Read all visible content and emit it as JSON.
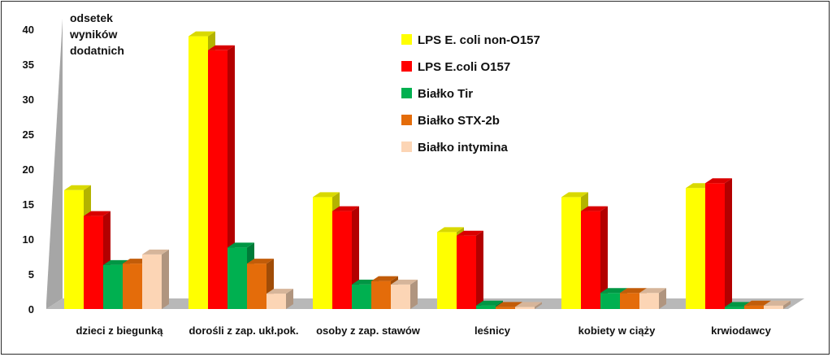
{
  "chart_data": {
    "type": "bar",
    "title": "",
    "ylabel": [
      "odsetek",
      "wyników",
      "dodatnich"
    ],
    "xlabel": "",
    "ylim": [
      0,
      40
    ],
    "yticks": [
      0,
      5,
      10,
      15,
      20,
      25,
      30,
      35,
      40
    ],
    "categories": [
      "dzieci z biegunką",
      "dorośli z zap. ukł.pok.",
      "osoby z zap. stawów",
      "leśnicy",
      "kobiety w ciąży",
      "krwiodawcy"
    ],
    "series": [
      {
        "name": "LPS E. coli non-O157",
        "color": "#ffff00",
        "values": [
          17,
          39,
          16,
          11,
          16,
          17.3
        ]
      },
      {
        "name": "LPS E.coli O157",
        "color": "#ff0000",
        "values": [
          13.3,
          37,
          14,
          10.5,
          14,
          18
        ]
      },
      {
        "name": "Białko Tir",
        "color": "#00b050",
        "values": [
          6.3,
          8.8,
          3.5,
          0.5,
          2.3,
          0.3
        ]
      },
      {
        "name": "Białko STX-2b",
        "color": "#e46c0a",
        "values": [
          6.5,
          6.5,
          4,
          0.3,
          2.3,
          0.5
        ]
      },
      {
        "name": "Białko intymina",
        "color": "#fcd5b5",
        "values": [
          7.8,
          2.2,
          3.5,
          0.3,
          2.3,
          0.5
        ]
      }
    ],
    "grid": false,
    "legend": "top-center"
  }
}
